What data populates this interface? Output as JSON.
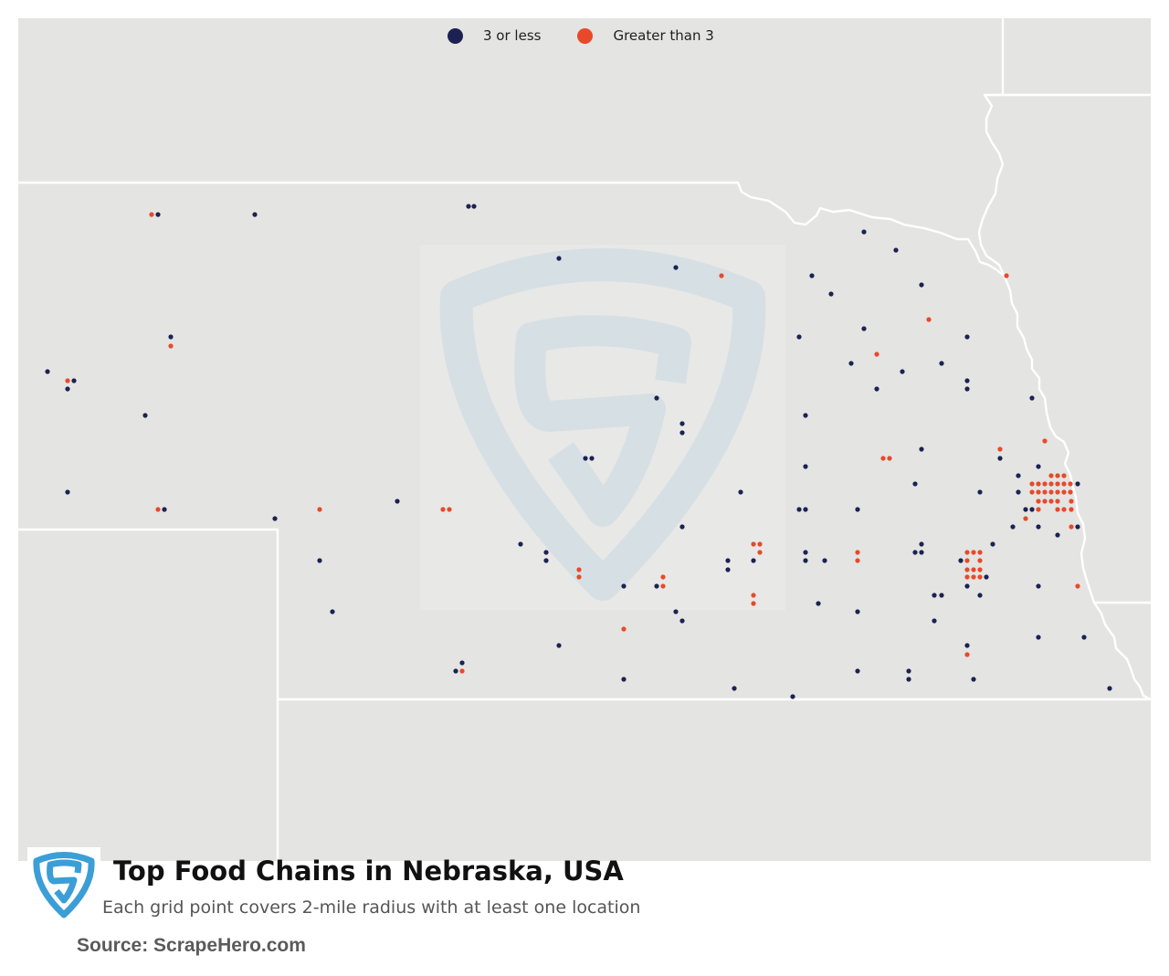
{
  "title": "Top Food Chains in Nebraska, USA",
  "subtitle": "Each grid point covers 2-mile radius with at least one location",
  "source": "Source: ScrapeHero.com",
  "legend": [
    {
      "label": "3 or less",
      "color": "#1b2253"
    },
    {
      "label": "Greater than 3",
      "color": "#e8492a"
    }
  ],
  "colors": {
    "background": "#e4e4e2",
    "border": "#ffffff",
    "watermark": "#d6dfe4",
    "logo": "#3c9ed6"
  },
  "icons": {
    "brand_logo": "shield-s-logo-icon",
    "watermark": "shield-s-watermark-icon"
  },
  "map_region": "Nebraska, USA"
}
